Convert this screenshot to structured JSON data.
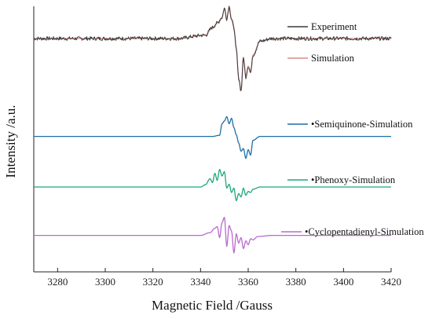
{
  "chart_data": {
    "type": "line",
    "title": "",
    "xlabel": "Magnetic Field /Gauss",
    "ylabel": "Intensity /a.u.",
    "xlim": [
      3270,
      3420
    ],
    "x_ticks": [
      3280,
      3300,
      3320,
      3340,
      3360,
      3380,
      3400,
      3420
    ],
    "y_ticks_shown": false,
    "grid": false,
    "legend_placement": "right, beside each trace",
    "series": [
      {
        "name": "Experiment",
        "color": "#3a3a3a",
        "style": "noisy",
        "baseline": 0,
        "x": [
          3270,
          3330,
          3342,
          3345,
          3347,
          3349,
          3350,
          3351,
          3352,
          3353,
          3354,
          3355,
          3356,
          3357,
          3358,
          3359,
          3360,
          3361,
          3362,
          3365,
          3370,
          3420
        ],
        "y": [
          0,
          0,
          0.06,
          0.2,
          0.28,
          0.38,
          0.55,
          0.36,
          0.58,
          0.35,
          0.2,
          -0.2,
          -0.72,
          -0.95,
          -0.35,
          -0.7,
          -0.5,
          -0.62,
          -0.3,
          -0.05,
          0,
          0
        ]
      },
      {
        "name": "Simulation",
        "color": "#d98c8c",
        "style": "smooth",
        "baseline": 0,
        "x": [
          3270,
          3330,
          3342,
          3345,
          3347,
          3349,
          3350,
          3351,
          3352,
          3353,
          3354,
          3355,
          3356,
          3357,
          3358,
          3359,
          3360,
          3361,
          3362,
          3365,
          3370,
          3420
        ],
        "y": [
          0,
          0,
          0.06,
          0.2,
          0.28,
          0.38,
          0.55,
          0.36,
          0.58,
          0.35,
          0.2,
          -0.2,
          -0.72,
          -0.95,
          -0.35,
          -0.7,
          -0.5,
          -0.62,
          -0.3,
          -0.05,
          0,
          0
        ]
      },
      {
        "name": "•Semiquinone-Simulation",
        "color": "#1f6fa8",
        "style": "smooth",
        "baseline": -1.78,
        "x": [
          3270,
          3345,
          3348,
          3349,
          3350,
          3351,
          3352,
          3353,
          3354,
          3355,
          3356,
          3357,
          3358,
          3359,
          3360,
          3361,
          3362,
          3365,
          3420
        ],
        "y": [
          -1.78,
          -1.78,
          -1.76,
          -1.55,
          -1.5,
          -1.42,
          -1.55,
          -1.45,
          -1.62,
          -1.75,
          -1.9,
          -2.05,
          -2.0,
          -2.18,
          -2.02,
          -2.12,
          -1.85,
          -1.78,
          -1.78
        ]
      },
      {
        "name": "•Phenoxy-Simulation",
        "color": "#1fa87a",
        "style": "smooth",
        "baseline": -2.7,
        "x": [
          3270,
          3340,
          3342,
          3344,
          3345,
          3346,
          3347,
          3348,
          3349,
          3350,
          3351,
          3352,
          3353,
          3354,
          3355,
          3356,
          3357,
          3358,
          3359,
          3360,
          3361,
          3362,
          3365,
          3420
        ],
        "y": [
          -2.7,
          -2.7,
          -2.66,
          -2.55,
          -2.62,
          -2.45,
          -2.58,
          -2.38,
          -2.5,
          -2.42,
          -2.72,
          -2.65,
          -2.8,
          -2.72,
          -2.95,
          -2.82,
          -2.88,
          -2.72,
          -2.85,
          -2.78,
          -2.8,
          -2.74,
          -2.7,
          -2.7
        ]
      },
      {
        "name": "•Cyclopentadienyl-Simulation",
        "color": "#b86ad0",
        "style": "smooth",
        "baseline": -3.58,
        "x": [
          3270,
          3340,
          3344,
          3346,
          3347,
          3348,
          3349,
          3350,
          3351,
          3352,
          3353,
          3354,
          3355,
          3356,
          3357,
          3358,
          3359,
          3360,
          3361,
          3362,
          3364,
          3370,
          3420
        ],
        "y": [
          -3.58,
          -3.58,
          -3.53,
          -3.45,
          -3.42,
          -3.62,
          -3.35,
          -3.25,
          -3.78,
          -3.4,
          -3.5,
          -3.9,
          -3.55,
          -3.72,
          -3.62,
          -3.82,
          -3.68,
          -3.75,
          -3.64,
          -3.66,
          -3.6,
          -3.58,
          -3.58
        ]
      }
    ]
  }
}
